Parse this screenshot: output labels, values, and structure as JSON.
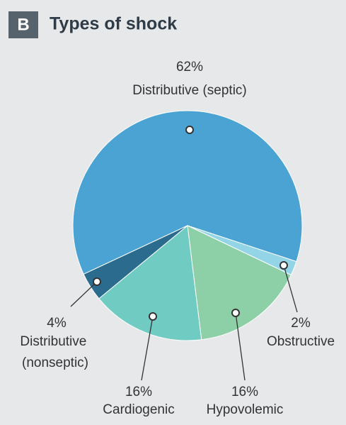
{
  "chart_data": {
    "type": "pie",
    "panel": "B",
    "title": "Types of shock",
    "categories": [
      "Distributive (septic)",
      "Obstructive",
      "Hypovolemic",
      "Cardiogenic",
      "Distributive (nonseptic)"
    ],
    "values": [
      62,
      2,
      16,
      16,
      4
    ],
    "value_labels": [
      "62%",
      "2%",
      "16%",
      "16%",
      "4%"
    ],
    "colors": [
      "#4aa3d3",
      "#93d5e6",
      "#8dcfa6",
      "#70cbc3",
      "#2b6b8d"
    ]
  }
}
